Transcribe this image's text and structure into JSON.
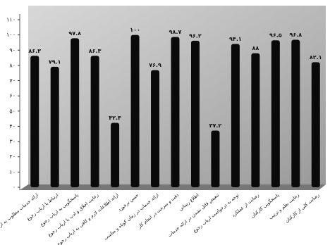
{
  "chart_data": {
    "type": "bar",
    "color": "#0a0a0a",
    "categories": [
      "ارائه خدمات مطلوب به ارباب رجوع",
      "ارتباط با ارباب رجوع",
      "پاسخگویی به ارباب رجوع",
      "رعایت اخلاق و ادب با ارباب رجوع",
      "ارائه اطلاعات لازم و کافی به ارباب رجوع",
      "حسن برخورد",
      "ارائه خدمات در زمان کوتاه و مناسب",
      "دقت و سرعت در انجام کار",
      "اطلاع رسانی",
      "تبعیض قائل نشدن در ارائه خدمات",
      "توجه به درخواست ارباب رجوع",
      "رضایت از عملکرد",
      "پاسخگویی کارکنان",
      "رعایت نظم و ترتیب",
      "رضایت کلی از کارکنان"
    ],
    "values": [
      86.3,
      79.1,
      97.8,
      86.3,
      42.3,
      100,
      76.9,
      98.7,
      96.2,
      37.2,
      94.1,
      88,
      96.5,
      96.8,
      82.1
    ],
    "value_labels": [
      "۸۶.۳",
      "۷۹.۱",
      "۹۷.۸",
      "۸۶.۳",
      "۴۲.۳",
      "۱۰۰",
      "۷۶.۹",
      "۹۸.۷",
      "۹۶.۲",
      "۳۷.۲",
      "۹۴.۱",
      "۸۸",
      "۹۶.۵",
      "۹۶.۸",
      "۸۲.۱"
    ],
    "ylim": [
      0,
      110
    ],
    "yticks": [
      {
        "value": 0,
        "label": "۰"
      },
      {
        "value": 10,
        "label": "۱۰"
      },
      {
        "value": 20,
        "label": "۲۰"
      },
      {
        "value": 30,
        "label": "۳۰"
      },
      {
        "value": 40,
        "label": "۴۰"
      },
      {
        "value": 50,
        "label": "۵۰"
      },
      {
        "value": 60,
        "label": "۶۰"
      },
      {
        "value": 70,
        "label": "۷۰"
      },
      {
        "value": 80,
        "label": "۸۰"
      },
      {
        "value": 90,
        "label": "۹۰"
      },
      {
        "value": 100,
        "label": "۱۰۰"
      },
      {
        "value": 110,
        "label": "۱۱۰"
      }
    ],
    "grid": false
  }
}
